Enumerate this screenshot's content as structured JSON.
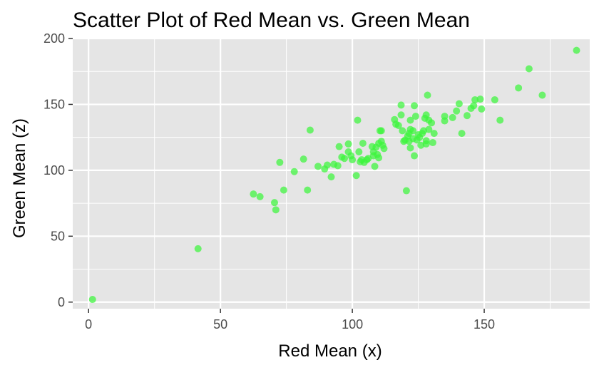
{
  "chart_data": {
    "type": "scatter",
    "title": "Scatter Plot of Red Mean vs. Green Mean",
    "xlabel": "Red Mean (x)",
    "ylabel": "Green Mean (z)",
    "xlim": [
      -6,
      190
    ],
    "ylim": [
      -5,
      200
    ],
    "x_ticks": [
      0,
      50,
      100,
      150
    ],
    "y_ticks": [
      0,
      50,
      100,
      150,
      200
    ],
    "x_minor": [
      25,
      75,
      125,
      175
    ],
    "y_minor": [
      25,
      75,
      125,
      175
    ],
    "grid": true,
    "colors": {
      "panel": "#e5e5e5",
      "grid": "#ffffff",
      "point": "#3cf53c",
      "tick": "#333333"
    },
    "points": [
      [
        1.5,
        2
      ],
      [
        41.5,
        40.5
      ],
      [
        62.5,
        82
      ],
      [
        65,
        80
      ],
      [
        70.5,
        75.5
      ],
      [
        71,
        70
      ],
      [
        72.5,
        106
      ],
      [
        74,
        85
      ],
      [
        78,
        99
      ],
      [
        81.5,
        108.5
      ],
      [
        83,
        85
      ],
      [
        84,
        130.5
      ],
      [
        87,
        103
      ],
      [
        89.5,
        101
      ],
      [
        90.5,
        104
      ],
      [
        92,
        95
      ],
      [
        93,
        104.5
      ],
      [
        94.5,
        103.5
      ],
      [
        95,
        118
      ],
      [
        96,
        110
      ],
      [
        97,
        109
      ],
      [
        98.5,
        114
      ],
      [
        98.5,
        120
      ],
      [
        99.5,
        111
      ],
      [
        100,
        108
      ],
      [
        101.5,
        96
      ],
      [
        102,
        138
      ],
      [
        102.5,
        114
      ],
      [
        103,
        106.5
      ],
      [
        103.5,
        108
      ],
      [
        104,
        120.5
      ],
      [
        104.5,
        106
      ],
      [
        105.5,
        108
      ],
      [
        106,
        109
      ],
      [
        107.5,
        118
      ],
      [
        108,
        114
      ],
      [
        108,
        111
      ],
      [
        108.5,
        103
      ],
      [
        109,
        117.5
      ],
      [
        109.5,
        112
      ],
      [
        110,
        120.5
      ],
      [
        110,
        109.5
      ],
      [
        110.5,
        130
      ],
      [
        111,
        130
      ],
      [
        111,
        122
      ],
      [
        111.5,
        119
      ],
      [
        112,
        116.5
      ],
      [
        116,
        138.5
      ],
      [
        116.5,
        135
      ],
      [
        117.5,
        134
      ],
      [
        118.5,
        149.5
      ],
      [
        118.5,
        142
      ],
      [
        119,
        130
      ],
      [
        119.5,
        122
      ],
      [
        120,
        123
      ],
      [
        120.5,
        84.5
      ],
      [
        121,
        126
      ],
      [
        121.5,
        122
      ],
      [
        121.5,
        128
      ],
      [
        122,
        138
      ],
      [
        122,
        117
      ],
      [
        122,
        131
      ],
      [
        123,
        130
      ],
      [
        123,
        124
      ],
      [
        123.5,
        149
      ],
      [
        123.5,
        111
      ],
      [
        124,
        141
      ],
      [
        124.5,
        123
      ],
      [
        125,
        127
      ],
      [
        125.5,
        125
      ],
      [
        126,
        119
      ],
      [
        126.5,
        128
      ],
      [
        127,
        130
      ],
      [
        127.5,
        139.5
      ],
      [
        128,
        120
      ],
      [
        128,
        122.5
      ],
      [
        128,
        142
      ],
      [
        128.5,
        157
      ],
      [
        129,
        131
      ],
      [
        129,
        138
      ],
      [
        130,
        136
      ],
      [
        130.5,
        121
      ],
      [
        131,
        128
      ],
      [
        135,
        137.5
      ],
      [
        135,
        141
      ],
      [
        138,
        140
      ],
      [
        139.5,
        145
      ],
      [
        140.5,
        150.5
      ],
      [
        141.5,
        128
      ],
      [
        143.5,
        141.5
      ],
      [
        145,
        147
      ],
      [
        146,
        149
      ],
      [
        146.5,
        153.5
      ],
      [
        148.5,
        154
      ],
      [
        149,
        146.5
      ],
      [
        154,
        153.5
      ],
      [
        156,
        138
      ],
      [
        163,
        162.5
      ],
      [
        167,
        177
      ],
      [
        172,
        157
      ],
      [
        185,
        191
      ]
    ]
  }
}
